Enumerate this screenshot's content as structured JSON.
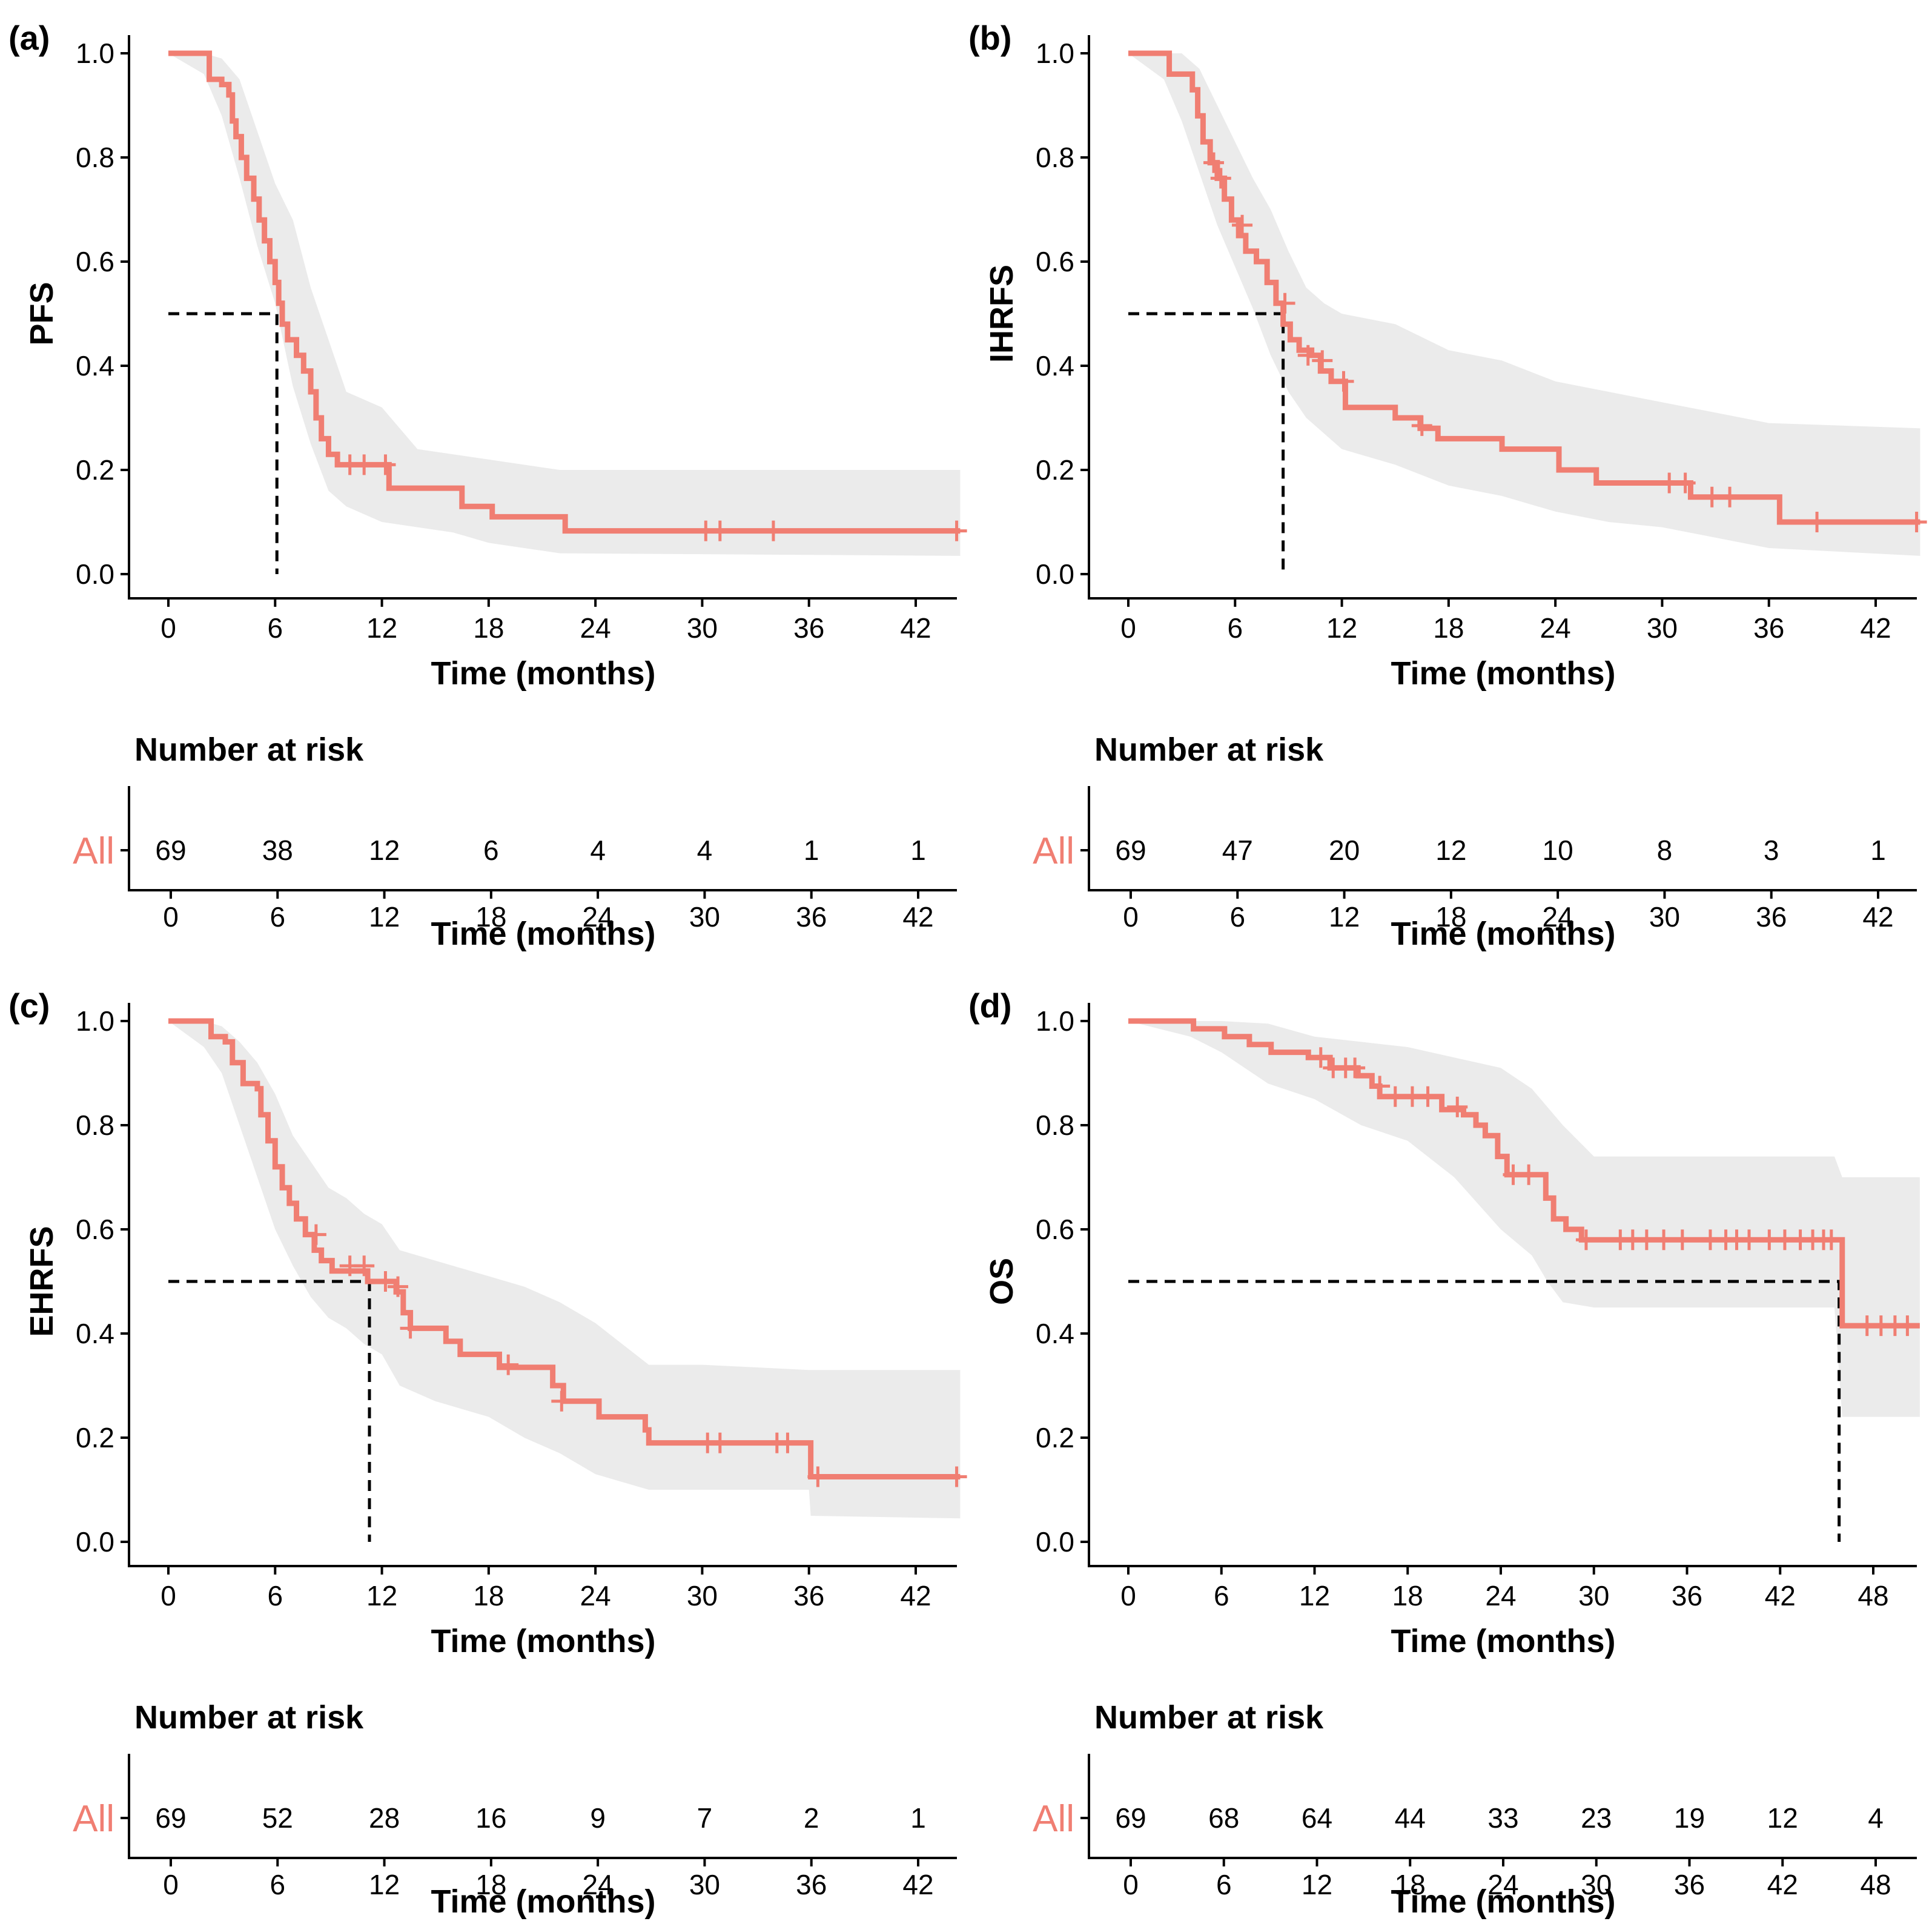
{
  "colors": {
    "curve": "#F07E72",
    "ci": "#EBEBEB",
    "axis": "#000000",
    "median": "#000000",
    "group": "#F07E72"
  },
  "panels": [
    {
      "label": "(a)",
      "ylabel": "PFS",
      "xlabel": "Time (months)",
      "x_ticks": [
        0,
        6,
        12,
        18,
        24,
        30,
        36,
        42
      ],
      "x_max": 44.5,
      "y_ticks": [
        "0.0",
        "0.2",
        "0.4",
        "0.6",
        "0.8",
        "1.0"
      ],
      "median": 6.1,
      "curve": [
        [
          0,
          1
        ],
        [
          2,
          1
        ],
        [
          2.3,
          0.95
        ],
        [
          3,
          0.94
        ],
        [
          3.4,
          0.92
        ],
        [
          3.6,
          0.87
        ],
        [
          3.8,
          0.84
        ],
        [
          4.1,
          0.8
        ],
        [
          4.4,
          0.76
        ],
        [
          4.8,
          0.72
        ],
        [
          5.1,
          0.68
        ],
        [
          5.4,
          0.64
        ],
        [
          5.7,
          0.6
        ],
        [
          6,
          0.56
        ],
        [
          6.2,
          0.52
        ],
        [
          6.4,
          0.48
        ],
        [
          6.7,
          0.45
        ],
        [
          7.2,
          0.42
        ],
        [
          7.6,
          0.39
        ],
        [
          8,
          0.35
        ],
        [
          8.3,
          0.3
        ],
        [
          8.6,
          0.26
        ],
        [
          9,
          0.23
        ],
        [
          9.5,
          0.21
        ],
        [
          12,
          0.21
        ],
        [
          12.4,
          0.165
        ],
        [
          16,
          0.165
        ],
        [
          16.5,
          0.13
        ],
        [
          17.8,
          0.13
        ],
        [
          18.2,
          0.11
        ],
        [
          22,
          0.11
        ],
        [
          22.3,
          0.083
        ],
        [
          44.5,
          0.083
        ]
      ],
      "ci_upper": [
        [
          0,
          1
        ],
        [
          2,
          1
        ],
        [
          3,
          0.99
        ],
        [
          4,
          0.95
        ],
        [
          5,
          0.85
        ],
        [
          6,
          0.75
        ],
        [
          7,
          0.68
        ],
        [
          8,
          0.55
        ],
        [
          9,
          0.45
        ],
        [
          10,
          0.35
        ],
        [
          12,
          0.32
        ],
        [
          14,
          0.24
        ],
        [
          18,
          0.22
        ],
        [
          22,
          0.2
        ],
        [
          44.5,
          0.2
        ]
      ],
      "ci_lower": [
        [
          0,
          1
        ],
        [
          2,
          0.96
        ],
        [
          3,
          0.88
        ],
        [
          4,
          0.76
        ],
        [
          5,
          0.63
        ],
        [
          6,
          0.52
        ],
        [
          7,
          0.36
        ],
        [
          8,
          0.25
        ],
        [
          9,
          0.16
        ],
        [
          10,
          0.13
        ],
        [
          12,
          0.1
        ],
        [
          16,
          0.08
        ],
        [
          18,
          0.06
        ],
        [
          22,
          0.04
        ],
        [
          44.5,
          0.035
        ]
      ],
      "censor": [
        [
          10.2,
          0.21
        ],
        [
          11,
          0.21
        ],
        [
          12.2,
          0.21
        ],
        [
          30.2,
          0.083
        ],
        [
          31,
          0.083
        ],
        [
          34,
          0.083
        ],
        [
          44.3,
          0.083
        ]
      ],
      "risk_title": "Number at risk",
      "group": "All",
      "risk": [
        "69",
        "38",
        "12",
        "6",
        "4",
        "4",
        "1",
        "1"
      ]
    },
    {
      "label": "(b)",
      "ylabel": "IHRFS",
      "xlabel": "Time (months)",
      "x_ticks": [
        0,
        6,
        12,
        18,
        24,
        30,
        36,
        42
      ],
      "x_max": 44.5,
      "y_ticks": [
        "0.0",
        "0.2",
        "0.4",
        "0.6",
        "0.8",
        "1.0"
      ],
      "median": 8.7,
      "curve": [
        [
          0,
          1
        ],
        [
          2,
          1
        ],
        [
          2.3,
          0.96
        ],
        [
          3.5,
          0.96
        ],
        [
          3.6,
          0.93
        ],
        [
          3.9,
          0.88
        ],
        [
          4.2,
          0.83
        ],
        [
          4.6,
          0.79
        ],
        [
          5,
          0.76
        ],
        [
          5.4,
          0.72
        ],
        [
          5.8,
          0.68
        ],
        [
          6.2,
          0.65
        ],
        [
          6.6,
          0.62
        ],
        [
          7.2,
          0.6
        ],
        [
          7.8,
          0.56
        ],
        [
          8.3,
          0.52
        ],
        [
          8.7,
          0.48
        ],
        [
          9.1,
          0.45
        ],
        [
          9.6,
          0.43
        ],
        [
          10.3,
          0.42
        ],
        [
          10.8,
          0.39
        ],
        [
          11.4,
          0.37
        ],
        [
          12.2,
          0.32
        ],
        [
          15,
          0.3
        ],
        [
          16.4,
          0.28
        ],
        [
          17.4,
          0.26
        ],
        [
          21,
          0.24
        ],
        [
          24.2,
          0.2
        ],
        [
          25,
          0.2
        ],
        [
          26.3,
          0.175
        ],
        [
          30.8,
          0.175
        ],
        [
          31.6,
          0.148
        ],
        [
          36.4,
          0.148
        ],
        [
          36.6,
          0.1
        ],
        [
          44.5,
          0.1
        ]
      ],
      "ci_upper": [
        [
          0,
          1
        ],
        [
          2,
          1
        ],
        [
          3,
          1
        ],
        [
          4,
          0.97
        ],
        [
          5,
          0.9
        ],
        [
          6,
          0.83
        ],
        [
          7,
          0.76
        ],
        [
          8,
          0.7
        ],
        [
          9,
          0.62
        ],
        [
          10,
          0.55
        ],
        [
          11,
          0.52
        ],
        [
          12,
          0.5
        ],
        [
          15,
          0.48
        ],
        [
          18,
          0.43
        ],
        [
          21,
          0.41
        ],
        [
          24,
          0.37
        ],
        [
          27,
          0.35
        ],
        [
          30,
          0.33
        ],
        [
          33,
          0.31
        ],
        [
          36,
          0.29
        ],
        [
          44.5,
          0.28
        ]
      ],
      "ci_lower": [
        [
          0,
          1
        ],
        [
          2,
          0.95
        ],
        [
          3,
          0.87
        ],
        [
          4,
          0.77
        ],
        [
          5,
          0.67
        ],
        [
          6,
          0.59
        ],
        [
          7,
          0.51
        ],
        [
          8,
          0.42
        ],
        [
          9,
          0.35
        ],
        [
          10,
          0.3
        ],
        [
          12,
          0.24
        ],
        [
          15,
          0.21
        ],
        [
          18,
          0.17
        ],
        [
          21,
          0.15
        ],
        [
          24,
          0.12
        ],
        [
          27,
          0.1
        ],
        [
          30,
          0.09
        ],
        [
          36,
          0.05
        ],
        [
          44.5,
          0.035
        ]
      ],
      "censor": [
        [
          4.8,
          0.79
        ],
        [
          5.2,
          0.76
        ],
        [
          6.4,
          0.67
        ],
        [
          8.8,
          0.52
        ],
        [
          10.1,
          0.42
        ],
        [
          10.9,
          0.41
        ],
        [
          12.1,
          0.37
        ],
        [
          16.5,
          0.285
        ],
        [
          30.4,
          0.175
        ],
        [
          31.3,
          0.175
        ],
        [
          32.8,
          0.148
        ],
        [
          33.8,
          0.148
        ],
        [
          38.7,
          0.1
        ],
        [
          44.3,
          0.1
        ]
      ],
      "risk_title": "Number at risk",
      "group": "All",
      "risk": [
        "69",
        "47",
        "20",
        "12",
        "10",
        "8",
        "3",
        "1"
      ]
    },
    {
      "label": "(c)",
      "ylabel": "EHRFS",
      "xlabel": "Time (months)",
      "x_ticks": [
        0,
        6,
        12,
        18,
        24,
        30,
        36,
        42
      ],
      "x_max": 44.5,
      "y_ticks": [
        "0.0",
        "0.2",
        "0.4",
        "0.6",
        "0.8",
        "1.0"
      ],
      "median": 11.3,
      "curve": [
        [
          0,
          1
        ],
        [
          2,
          1
        ],
        [
          2.4,
          0.97
        ],
        [
          3.2,
          0.96
        ],
        [
          3.6,
          0.92
        ],
        [
          4.2,
          0.88
        ],
        [
          5,
          0.87
        ],
        [
          5.2,
          0.82
        ],
        [
          5.6,
          0.77
        ],
        [
          6,
          0.72
        ],
        [
          6.4,
          0.68
        ],
        [
          6.8,
          0.65
        ],
        [
          7.2,
          0.62
        ],
        [
          7.7,
          0.59
        ],
        [
          8.2,
          0.56
        ],
        [
          8.6,
          0.54
        ],
        [
          9.2,
          0.52
        ],
        [
          10.3,
          0.52
        ],
        [
          11.2,
          0.5
        ],
        [
          12.8,
          0.48
        ],
        [
          13.2,
          0.44
        ],
        [
          13.6,
          0.41
        ],
        [
          15.6,
          0.385
        ],
        [
          16.4,
          0.36
        ],
        [
          18.6,
          0.335
        ],
        [
          21.6,
          0.3
        ],
        [
          22.2,
          0.27
        ],
        [
          24.2,
          0.24
        ],
        [
          26.8,
          0.215
        ],
        [
          27,
          0.19
        ],
        [
          35.9,
          0.19
        ],
        [
          36.1,
          0.125
        ],
        [
          44.5,
          0.125
        ]
      ],
      "ci_upper": [
        [
          0,
          1
        ],
        [
          2,
          1
        ],
        [
          3,
          0.99
        ],
        [
          4,
          0.96
        ],
        [
          5,
          0.92
        ],
        [
          6,
          0.86
        ],
        [
          7,
          0.78
        ],
        [
          8,
          0.73
        ],
        [
          9,
          0.68
        ],
        [
          10,
          0.66
        ],
        [
          11,
          0.63
        ],
        [
          12,
          0.61
        ],
        [
          13,
          0.56
        ],
        [
          15,
          0.54
        ],
        [
          18,
          0.51
        ],
        [
          20,
          0.49
        ],
        [
          22,
          0.46
        ],
        [
          24,
          0.42
        ],
        [
          27,
          0.34
        ],
        [
          30,
          0.34
        ],
        [
          36,
          0.33
        ],
        [
          44.5,
          0.33
        ]
      ],
      "ci_lower": [
        [
          0,
          1
        ],
        [
          2,
          0.95
        ],
        [
          3,
          0.9
        ],
        [
          4,
          0.8
        ],
        [
          5,
          0.7
        ],
        [
          6,
          0.6
        ],
        [
          7,
          0.53
        ],
        [
          8,
          0.47
        ],
        [
          9,
          0.43
        ],
        [
          10,
          0.41
        ],
        [
          11,
          0.38
        ],
        [
          12,
          0.36
        ],
        [
          13,
          0.3
        ],
        [
          15,
          0.27
        ],
        [
          18,
          0.24
        ],
        [
          20,
          0.2
        ],
        [
          22,
          0.17
        ],
        [
          24,
          0.13
        ],
        [
          27,
          0.1
        ],
        [
          36,
          0.1
        ],
        [
          36.1,
          0.05
        ],
        [
          44.5,
          0.045
        ]
      ],
      "censor": [
        [
          8.3,
          0.59
        ],
        [
          10.2,
          0.53
        ],
        [
          11,
          0.53
        ],
        [
          12.2,
          0.5
        ],
        [
          12.9,
          0.49
        ],
        [
          13.6,
          0.41
        ],
        [
          19.1,
          0.34
        ],
        [
          22.1,
          0.27
        ],
        [
          30.3,
          0.19
        ],
        [
          31,
          0.19
        ],
        [
          34.2,
          0.19
        ],
        [
          34.8,
          0.19
        ],
        [
          36.5,
          0.125
        ],
        [
          44.3,
          0.125
        ]
      ],
      "risk_title": "Number at risk",
      "group": "All",
      "risk": [
        "69",
        "52",
        "28",
        "16",
        "9",
        "7",
        "2",
        "1"
      ]
    },
    {
      "label": "(d)",
      "ylabel": "OS",
      "xlabel": "Time (months)",
      "x_ticks": [
        0,
        6,
        12,
        18,
        24,
        30,
        36,
        42,
        48
      ],
      "x_max": 51,
      "y_ticks": [
        "0.0",
        "0.2",
        "0.4",
        "0.6",
        "0.8",
        "1.0"
      ],
      "median": 45.8,
      "curve": [
        [
          0,
          1
        ],
        [
          4,
          1
        ],
        [
          4.2,
          0.985
        ],
        [
          6.2,
          0.97
        ],
        [
          7.8,
          0.955
        ],
        [
          9.2,
          0.94
        ],
        [
          11.6,
          0.93
        ],
        [
          12.2,
          0.93
        ],
        [
          13,
          0.91
        ],
        [
          14.8,
          0.895
        ],
        [
          15.7,
          0.875
        ],
        [
          16.2,
          0.855
        ],
        [
          19.5,
          0.855
        ],
        [
          20.2,
          0.83
        ],
        [
          21.6,
          0.82
        ],
        [
          22.4,
          0.8
        ],
        [
          23,
          0.78
        ],
        [
          23.8,
          0.74
        ],
        [
          24.4,
          0.705
        ],
        [
          26.6,
          0.705
        ],
        [
          26.9,
          0.66
        ],
        [
          27.4,
          0.62
        ],
        [
          28.2,
          0.6
        ],
        [
          29.2,
          0.58
        ],
        [
          45.6,
          0.58
        ],
        [
          46,
          0.415
        ],
        [
          51,
          0.415
        ]
      ],
      "ci_upper": [
        [
          0,
          1
        ],
        [
          6,
          1
        ],
        [
          9,
          0.995
        ],
        [
          12,
          0.97
        ],
        [
          15,
          0.96
        ],
        [
          18,
          0.95
        ],
        [
          21,
          0.93
        ],
        [
          24,
          0.91
        ],
        [
          26,
          0.87
        ],
        [
          28,
          0.8
        ],
        [
          30,
          0.74
        ],
        [
          36,
          0.74
        ],
        [
          45.5,
          0.74
        ],
        [
          46,
          0.7
        ],
        [
          51,
          0.7
        ]
      ],
      "ci_lower": [
        [
          0,
          1
        ],
        [
          4,
          0.97
        ],
        [
          6,
          0.94
        ],
        [
          9,
          0.88
        ],
        [
          12,
          0.85
        ],
        [
          15,
          0.8
        ],
        [
          18,
          0.77
        ],
        [
          21,
          0.7
        ],
        [
          24,
          0.6
        ],
        [
          26,
          0.55
        ],
        [
          27,
          0.5
        ],
        [
          28,
          0.46
        ],
        [
          30,
          0.45
        ],
        [
          45.5,
          0.45
        ],
        [
          46,
          0.24
        ],
        [
          51,
          0.24
        ]
      ],
      "censor": [
        [
          12.4,
          0.93
        ],
        [
          13.2,
          0.91
        ],
        [
          14,
          0.91
        ],
        [
          14.6,
          0.91
        ],
        [
          16.2,
          0.875
        ],
        [
          17.2,
          0.855
        ],
        [
          18.3,
          0.855
        ],
        [
          19.3,
          0.855
        ],
        [
          21.2,
          0.835
        ],
        [
          24.8,
          0.705
        ],
        [
          25.8,
          0.705
        ],
        [
          29.5,
          0.58
        ],
        [
          31.7,
          0.58
        ],
        [
          32.5,
          0.58
        ],
        [
          33.4,
          0.58
        ],
        [
          34.5,
          0.58
        ],
        [
          35.7,
          0.58
        ],
        [
          37.5,
          0.58
        ],
        [
          38.5,
          0.58
        ],
        [
          39.2,
          0.58
        ],
        [
          40,
          0.58
        ],
        [
          41.3,
          0.58
        ],
        [
          42.3,
          0.58
        ],
        [
          43.3,
          0.58
        ],
        [
          44.1,
          0.58
        ],
        [
          44.8,
          0.58
        ],
        [
          45.3,
          0.58
        ],
        [
          47.6,
          0.415
        ],
        [
          48.5,
          0.415
        ],
        [
          49.4,
          0.415
        ],
        [
          50.2,
          0.415
        ]
      ],
      "risk_title": "Number at risk",
      "group": "All",
      "risk": [
        "69",
        "68",
        "64",
        "44",
        "33",
        "23",
        "19",
        "12",
        "4"
      ]
    }
  ]
}
